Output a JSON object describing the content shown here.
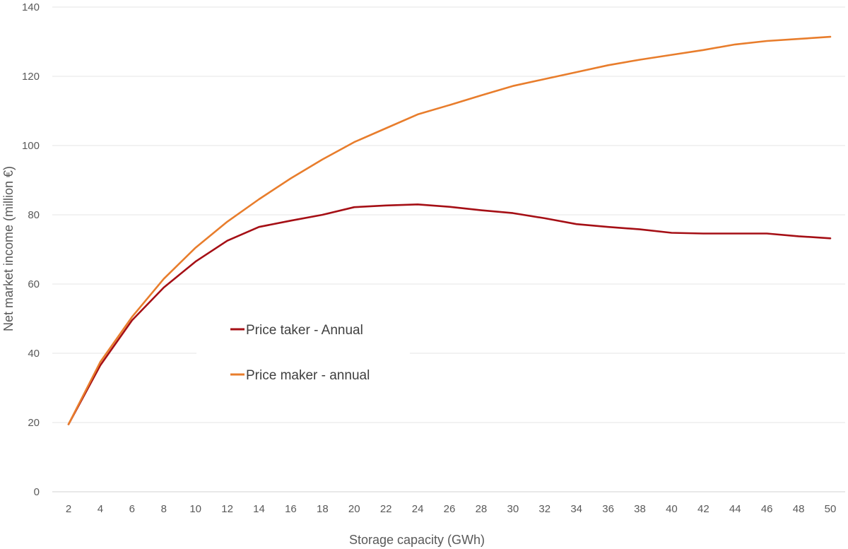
{
  "chart_data": {
    "type": "line",
    "xlabel": "Storage capacity (GWh)",
    "ylabel": "Net market income (million €)",
    "ylim": [
      0,
      140
    ],
    "yticks": [
      0,
      20,
      40,
      60,
      80,
      100,
      120,
      140
    ],
    "grid": true,
    "legend_position": "center-left",
    "x": [
      2,
      4,
      6,
      8,
      10,
      12,
      14,
      16,
      18,
      20,
      22,
      24,
      26,
      28,
      30,
      32,
      34,
      36,
      38,
      40,
      42,
      44,
      46,
      48,
      50
    ],
    "series": [
      {
        "name": "Price taker - Annual",
        "color": "#a50f15",
        "values": [
          19.5,
          36.5,
          49.5,
          59,
          66.5,
          72.5,
          76.5,
          78.3,
          80,
          82.2,
          82.7,
          83,
          82.3,
          81.3,
          80.5,
          79,
          77.3,
          76.5,
          75.8,
          74.8,
          74.6,
          74.6,
          74.6,
          73.8,
          73.2
        ]
      },
      {
        "name": "Price maker - annual",
        "color": "#e87d2c",
        "values": [
          19.5,
          37.5,
          50.5,
          61.5,
          70.5,
          78,
          84.5,
          90.5,
          96,
          101,
          105,
          109,
          111.7,
          114.5,
          117.2,
          119.2,
          121.2,
          123.2,
          124.8,
          126.2,
          127.6,
          129.2,
          130.2,
          130.8,
          131.4
        ]
      }
    ]
  }
}
